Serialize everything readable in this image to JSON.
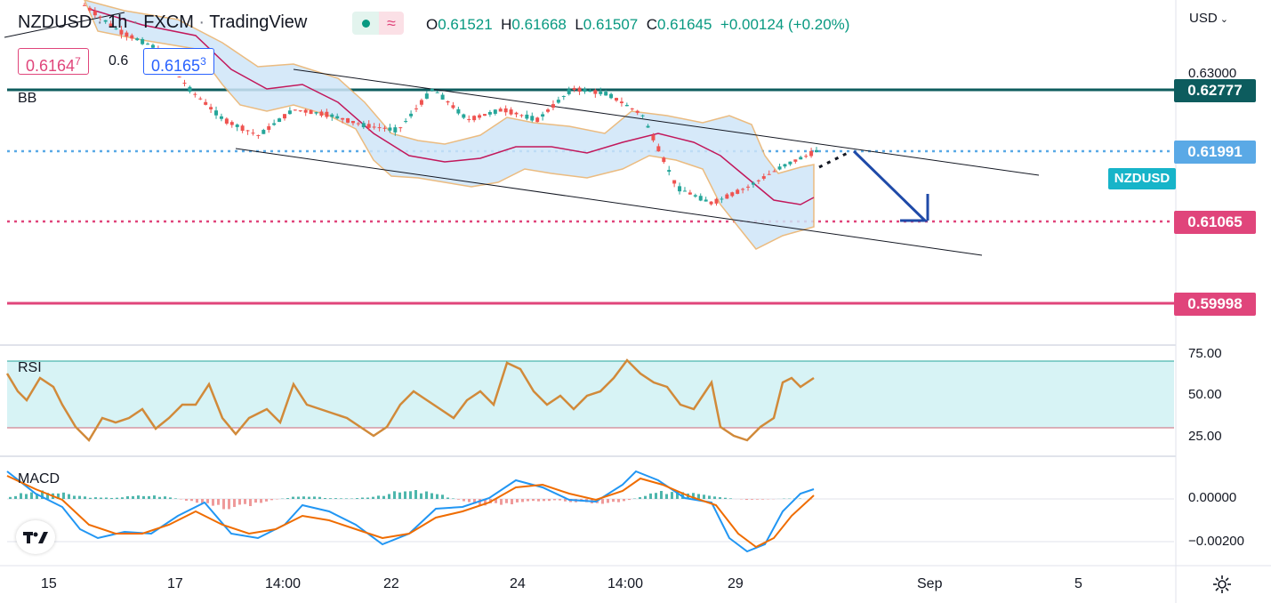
{
  "header": {
    "symbol": "NZDUSD",
    "interval": "1h",
    "broker": "FXCM",
    "platform": "TradingView",
    "open_label": "O",
    "open": "0.61521",
    "high_label": "H",
    "high": "0.61668",
    "low_label": "L",
    "low": "0.61507",
    "close_label": "C",
    "close": "0.61645",
    "change": "+0.00124 (+0.20%)"
  },
  "quote": {
    "bid_main": "0.6164",
    "bid_sup": "7",
    "spread": "0.6",
    "ask_main": "0.6165",
    "ask_sup": "3"
  },
  "indicators": {
    "bb": "BB",
    "rsi": "RSI",
    "macd": "MACD"
  },
  "currency_selector": "USD",
  "price_axis": {
    "ticks": [
      "0.63000"
    ],
    "badges": [
      {
        "label": "0.62777",
        "color": "#0d5c5e"
      },
      {
        "label": "0.61991",
        "color": "#5aa9e6"
      },
      {
        "label": "NZDUSD",
        "color": "#17b4c9"
      },
      {
        "label": "0.61065",
        "color": "#e0457b"
      },
      {
        "label": "0.59998",
        "color": "#e0457b"
      }
    ]
  },
  "rsi_axis": [
    "75.00",
    "50.00",
    "25.00"
  ],
  "macd_axis": [
    "0.00000",
    "−0.00200"
  ],
  "time_axis": [
    "15",
    "17",
    "14:00",
    "22",
    "24",
    "14:00",
    "29",
    "Sep",
    "5"
  ],
  "icons": {
    "logo": "tradingview-logo-icon",
    "settings": "settings-gear-icon",
    "chevron": "chevron-down-icon"
  },
  "chart_data": {
    "type": "line",
    "series": [
      {
        "name": "NZDUSD",
        "values": [
          0.6305,
          0.628,
          0.6265,
          0.6225,
          0.6195,
          0.618,
          0.6205,
          0.62,
          0.619,
          0.6185,
          0.6225,
          0.6195,
          0.6205,
          0.6195,
          0.6225,
          0.622,
          0.62,
          0.613,
          0.6115,
          0.613,
          0.615,
          0.6165
        ]
      }
    ],
    "horizontal_levels": [
      0.62777,
      0.61991,
      0.61065,
      0.59998
    ],
    "rsi_levels": [
      70,
      30
    ]
  }
}
